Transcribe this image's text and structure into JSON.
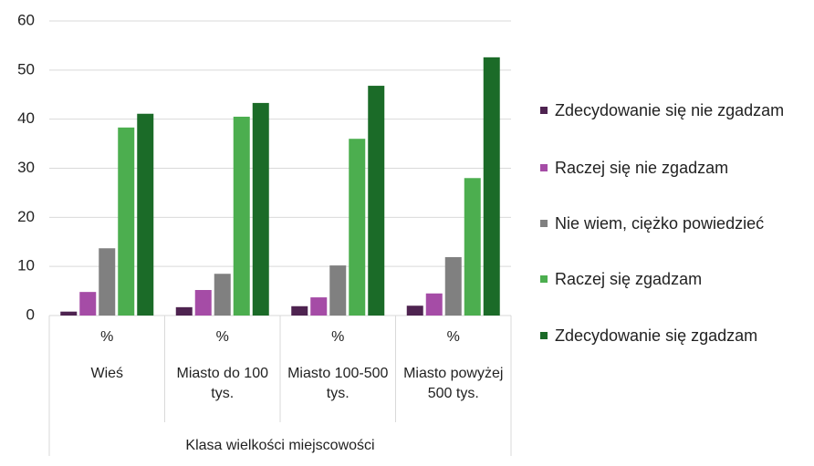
{
  "chart_data": {
    "type": "bar",
    "categories": [
      "Wieś",
      "Miasto do 100 tys.",
      "Miasto 100-500 tys.",
      "Miasto powyżej 500 tys."
    ],
    "category_sublabels": [
      "%",
      "%",
      "%",
      "%"
    ],
    "group_label": "Klasa wielkości miejscowości",
    "series": [
      {
        "name": "Zdecydowanie się nie zgadzam",
        "color": "#4e2350",
        "values": [
          0.8,
          1.7,
          1.9,
          2.0
        ]
      },
      {
        "name": "Raczej się nie zgadzam",
        "color": "#a54ca6",
        "values": [
          4.8,
          5.2,
          3.7,
          4.5
        ]
      },
      {
        "name": "Nie wiem, ciężko powiedzieć",
        "color": "#808080",
        "values": [
          13.7,
          8.5,
          10.2,
          11.9
        ]
      },
      {
        "name": "Raczej się zgadzam",
        "color": "#4cae4f",
        "values": [
          38.3,
          40.5,
          36.0,
          28.0
        ]
      },
      {
        "name": "Zdecydowanie się zgadzam",
        "color": "#1b6b28",
        "values": [
          41.1,
          43.3,
          46.8,
          52.6
        ]
      }
    ],
    "ylim": [
      0,
      60
    ],
    "yticks": [
      0,
      10,
      20,
      30,
      40,
      50,
      60
    ],
    "grid": true
  }
}
